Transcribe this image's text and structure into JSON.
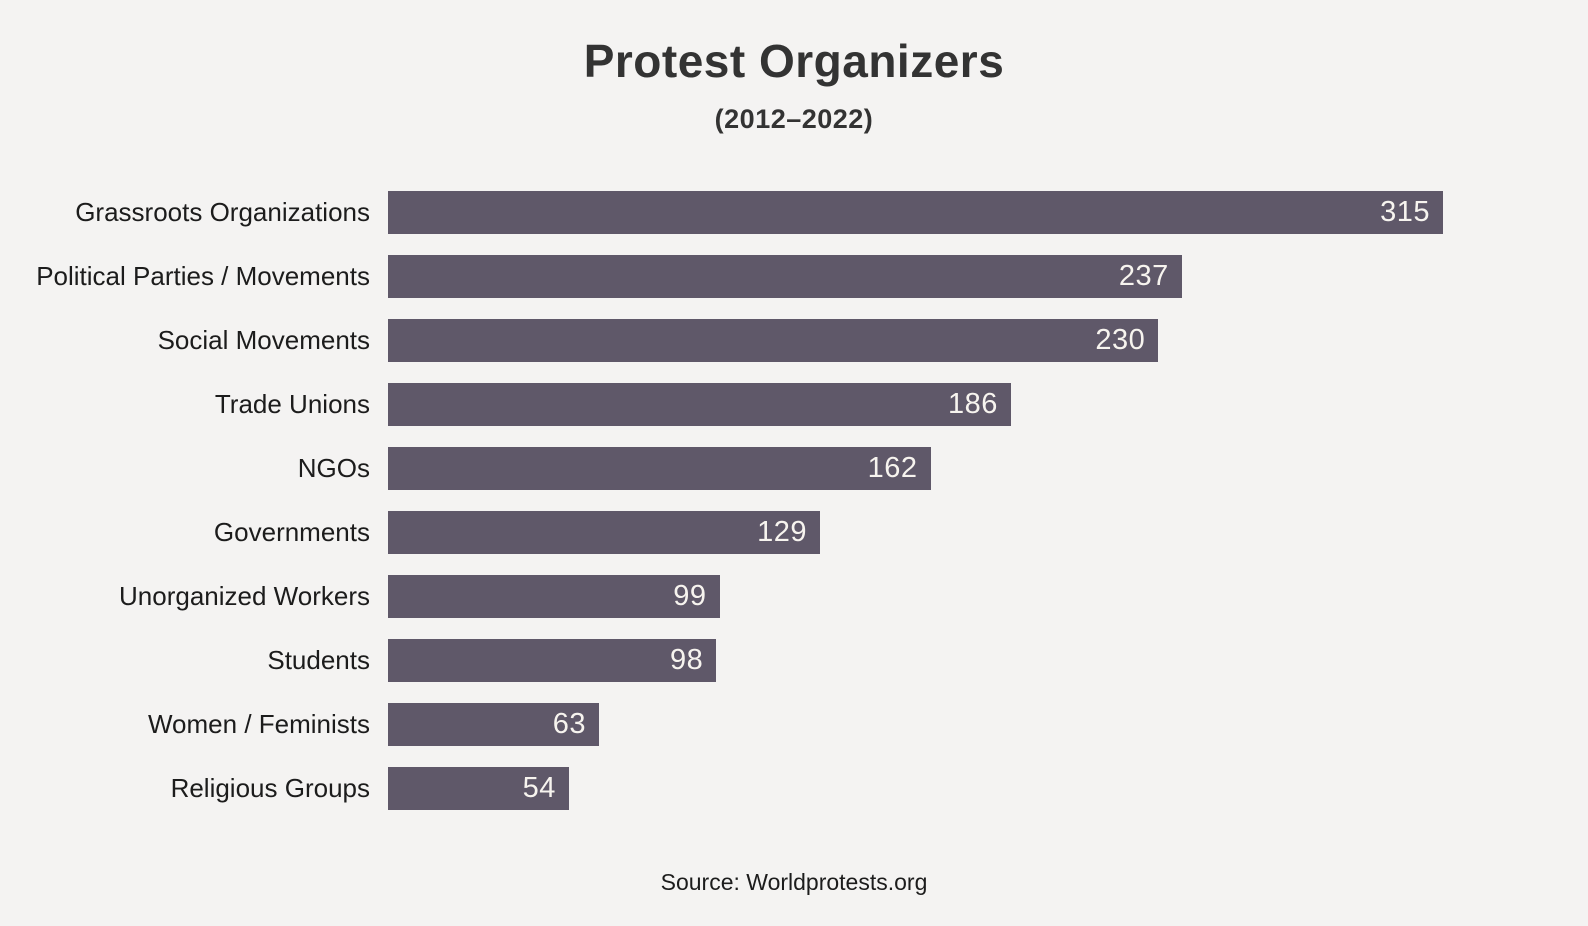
{
  "header": {
    "title": "Protest Organizers",
    "subtitle": "(2012–2022)"
  },
  "footer": {
    "source": "Source: Worldprotests.org"
  },
  "colors": {
    "background": "#f4f3f2",
    "bar": "#5f5869",
    "title_text": "#333333",
    "label_text": "#1c1c1c",
    "value_text": "#f7f4ef"
  },
  "chart_data": {
    "type": "bar",
    "orientation": "horizontal",
    "title": "Protest Organizers",
    "subtitle": "(2012–2022)",
    "categories": [
      "Grassroots Organizations",
      "Political Parties / Movements",
      "Social Movements",
      "Trade Unions",
      "NGOs",
      "Governments",
      "Unorganized Workers",
      "Students",
      "Women / Feminists",
      "Religious Groups"
    ],
    "values": [
      315,
      237,
      230,
      186,
      162,
      129,
      99,
      98,
      63,
      54
    ],
    "xlim": [
      0,
      315
    ],
    "value_labels": "inside-end",
    "grid": false,
    "legend": false,
    "source": "Source: Worldprotests.org"
  }
}
